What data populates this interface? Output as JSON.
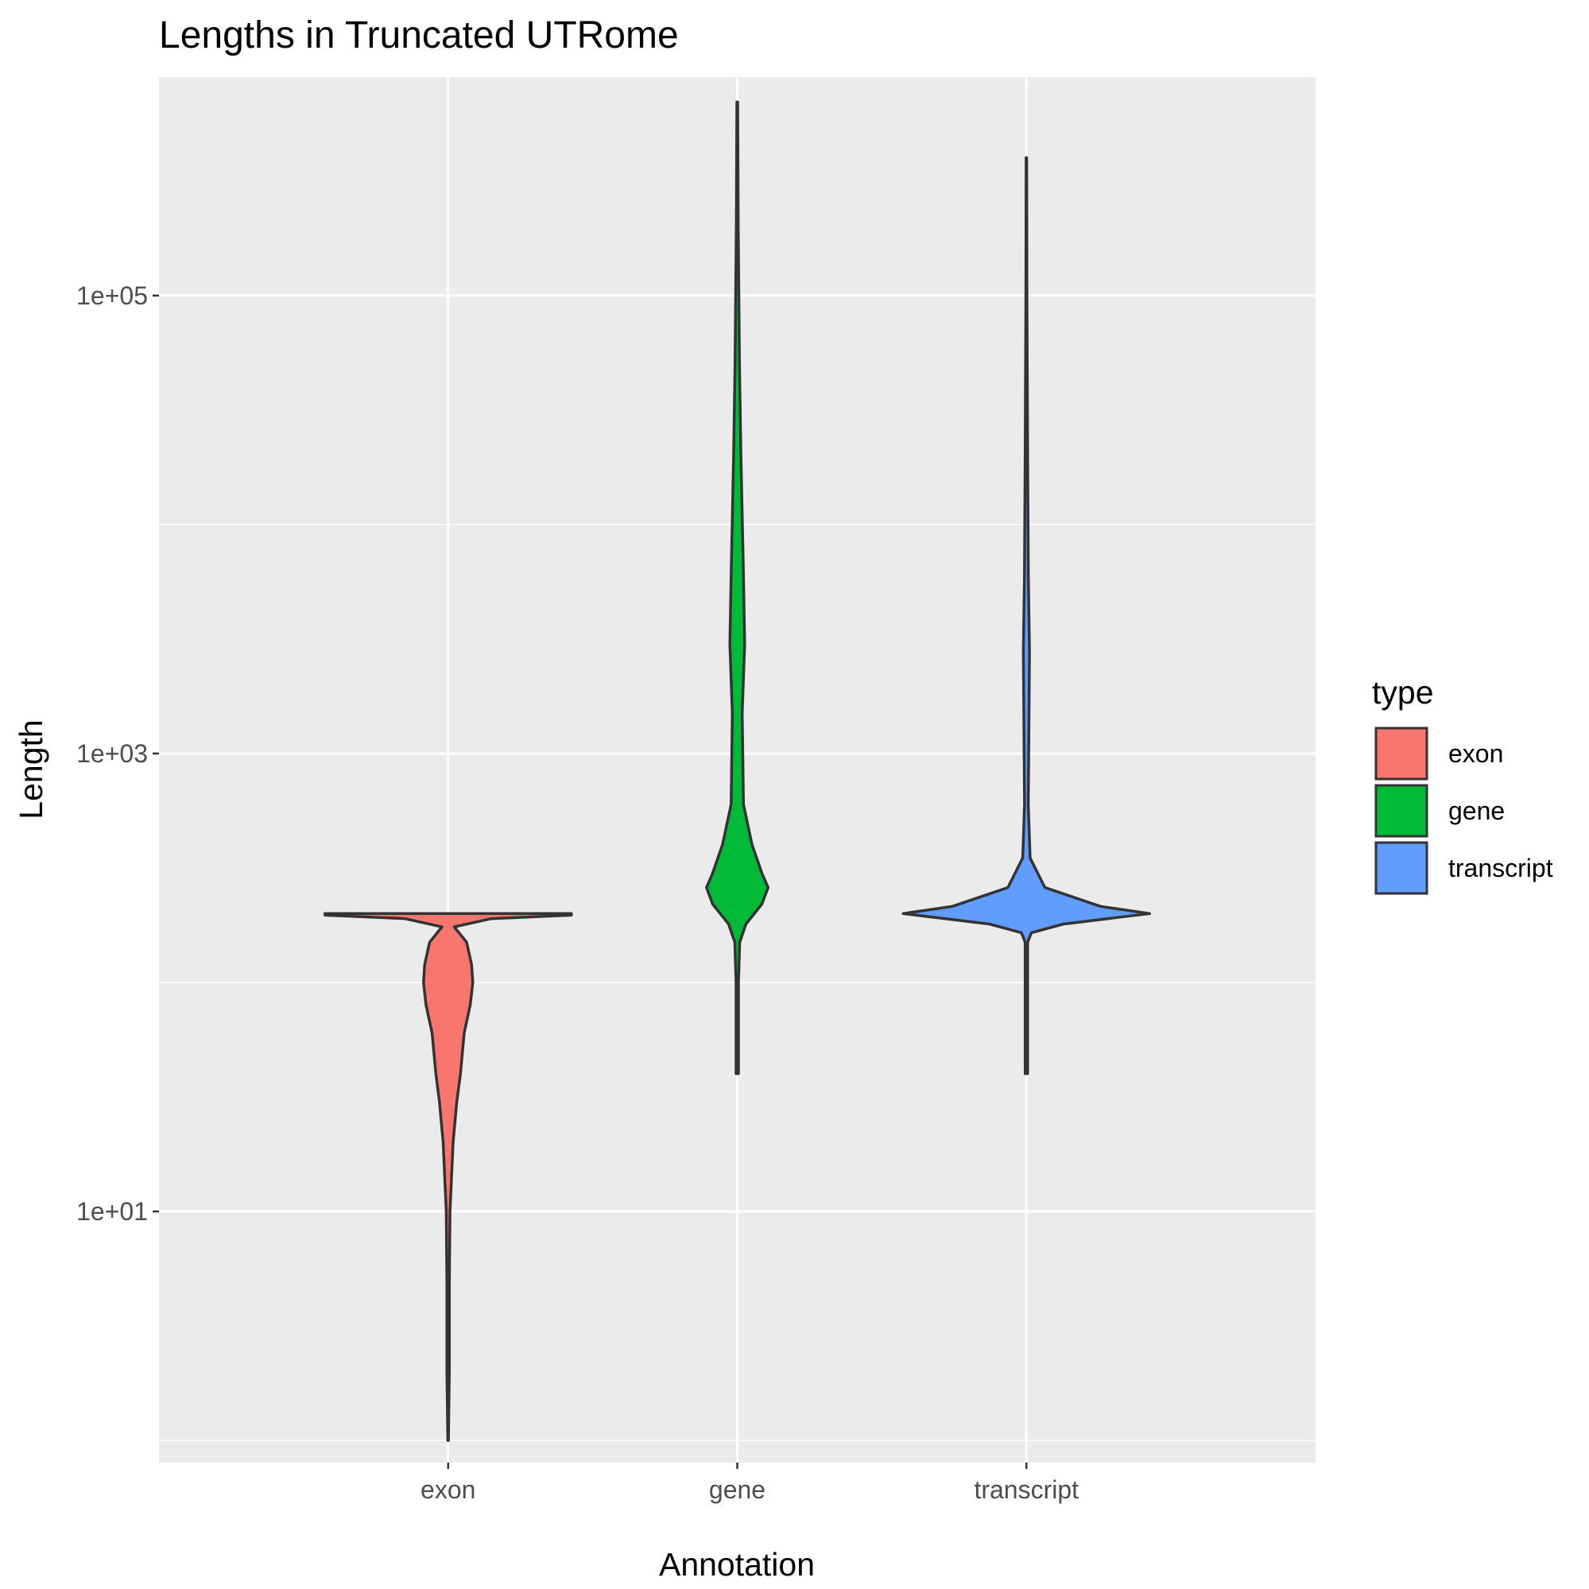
{
  "chart_data": {
    "type": "violin",
    "title": "Lengths in Truncated UTRome",
    "xlabel": "Annotation",
    "ylabel": "Length",
    "y_scale": "log10",
    "ylim": [
      0.8,
      900000
    ],
    "y_ticks": [
      {
        "value": 10,
        "label": "1e+01"
      },
      {
        "value": 1000,
        "label": "1e+03"
      },
      {
        "value": 100000,
        "label": "1e+05"
      }
    ],
    "y_minor_ticks": [
      1,
      100,
      10000,
      1000000
    ],
    "categories": [
      "exon",
      "gene",
      "transcript"
    ],
    "grid": true,
    "legend": {
      "title": "type",
      "position": "right",
      "entries": [
        "exon",
        "gene",
        "transcript"
      ]
    },
    "colors": {
      "exon": "#F8766D",
      "gene": "#00BA38",
      "transcript": "#619CFF",
      "panel": "#EBEBEB",
      "grid": "#FFFFFF",
      "outline": "#333333"
    },
    "series": [
      {
        "name": "exon",
        "min": 1,
        "max": 200,
        "density_profile": [
          [
            1,
            0.002
          ],
          [
            2,
            0.01
          ],
          [
            5,
            0.01
          ],
          [
            10,
            0.015
          ],
          [
            20,
            0.04
          ],
          [
            30,
            0.07
          ],
          [
            40,
            0.1
          ],
          [
            60,
            0.13
          ],
          [
            80,
            0.18
          ],
          [
            100,
            0.2
          ],
          [
            120,
            0.19
          ],
          [
            150,
            0.15
          ],
          [
            175,
            0.05
          ],
          [
            190,
            0.35
          ],
          [
            197,
            1.0
          ],
          [
            200,
            1.0
          ]
        ]
      },
      {
        "name": "gene",
        "min": 40,
        "max": 700000,
        "density_profile": [
          [
            40,
            0.01
          ],
          [
            100,
            0.01
          ],
          [
            150,
            0.02
          ],
          [
            180,
            0.07
          ],
          [
            220,
            0.2
          ],
          [
            260,
            0.25
          ],
          [
            300,
            0.2
          ],
          [
            400,
            0.12
          ],
          [
            600,
            0.05
          ],
          [
            1500,
            0.04
          ],
          [
            3000,
            0.06
          ],
          [
            6000,
            0.05
          ],
          [
            20000,
            0.03
          ],
          [
            50000,
            0.018
          ],
          [
            200000,
            0.008
          ],
          [
            700000,
            0.003
          ]
        ]
      },
      {
        "name": "transcript",
        "min": 40,
        "max": 400000,
        "density_profile": [
          [
            40,
            0.01
          ],
          [
            150,
            0.01
          ],
          [
            165,
            0.04
          ],
          [
            180,
            0.3
          ],
          [
            200,
            1.0
          ],
          [
            215,
            0.6
          ],
          [
            260,
            0.15
          ],
          [
            350,
            0.03
          ],
          [
            600,
            0.015
          ],
          [
            1200,
            0.02
          ],
          [
            2800,
            0.025
          ],
          [
            6000,
            0.016
          ],
          [
            20000,
            0.01
          ],
          [
            100000,
            0.004
          ],
          [
            400000,
            0.002
          ]
        ]
      }
    ]
  }
}
